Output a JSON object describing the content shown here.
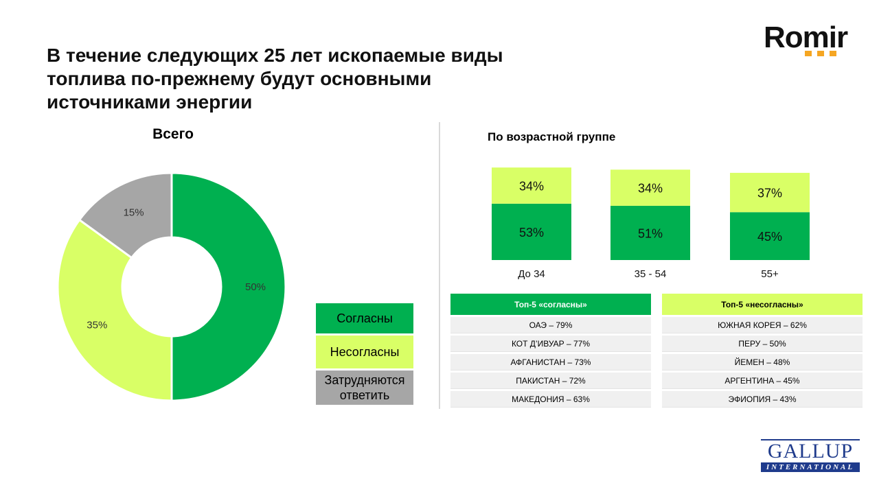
{
  "title": "В течение следующих 25 лет ископаемые виды топлива по-прежнему будут основными источниками энергии",
  "logo_text": "Romir",
  "subtitle_total": "Всего",
  "subtitle_age": "По возрастной группе",
  "legend": {
    "agree": "Согласны",
    "disagree": "Несогласны",
    "hard": "Затрудняются ответить"
  },
  "colors": {
    "agree": "#00b050",
    "disagree": "#d9ff66",
    "hard": "#a6a6a6"
  },
  "chart_data": [
    {
      "type": "pie",
      "title": "Всего",
      "categories": [
        "Согласны",
        "Несогласны",
        "Затрудняются ответить"
      ],
      "values": [
        50,
        35,
        15
      ],
      "labels": [
        "50%",
        "35%",
        "15%"
      ]
    },
    {
      "type": "bar",
      "title": "По возрастной группе",
      "stacked": true,
      "categories": [
        "До 34",
        "35 - 54",
        "55+"
      ],
      "series": [
        {
          "name": "Согласны",
          "values": [
            53,
            51,
            45
          ],
          "labels": [
            "53%",
            "51%",
            "45%"
          ]
        },
        {
          "name": "Несогласны",
          "values": [
            34,
            34,
            37
          ],
          "labels": [
            "34%",
            "34%",
            "37%"
          ]
        }
      ]
    }
  ],
  "top_agree": {
    "header": "Топ-5 «согласны»",
    "rows": [
      "ОАЭ – 79%",
      "КОТ Д’ИВУАР – 77%",
      "АФГАНИСТАН – 73%",
      "ПАКИСТАН – 72%",
      "МАКЕДОНИЯ – 63%"
    ]
  },
  "top_disagree": {
    "header": "Топ-5 «несогласны»",
    "rows": [
      "ЮЖНАЯ КОРЕЯ – 62%",
      "ПЕРУ – 50%",
      "ЙЕМЕН – 48%",
      "АРГЕНТИНА – 45%",
      "ЭФИОПИЯ – 43%"
    ]
  },
  "gallup": {
    "top": "GALLUP",
    "bottom": "INTERNATIONAL"
  }
}
